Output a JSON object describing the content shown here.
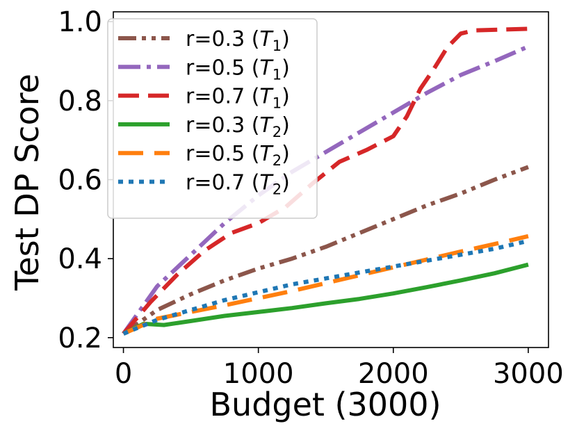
{
  "chart_data": {
    "type": "line",
    "xlabel": "Budget (3000)",
    "ylabel": "Test DP Score",
    "xlim": [
      -75,
      3150
    ],
    "ylim": [
      0.175,
      1.025
    ],
    "xticks": [
      0,
      1000,
      2000,
      3000
    ],
    "xtick_labels": [
      "0",
      "1000",
      "2000",
      "3000"
    ],
    "yticks": [
      0.2,
      0.4,
      0.6,
      0.8,
      1.0
    ],
    "ytick_labels": [
      "0.2",
      "0.4",
      "0.6",
      "0.8",
      "1.0"
    ],
    "grid": false,
    "legend_position": "upper-left",
    "series": [
      {
        "name": "r=0.3 (T1)",
        "label_main": "r=0.3 (",
        "label_var": "T",
        "label_sub": "1",
        "label_close": ")",
        "color": "#8c564b",
        "style": "dashdotdot",
        "x": [
          0,
          250,
          500,
          750,
          1000,
          1250,
          1500,
          1750,
          2000,
          2250,
          2500,
          2750,
          3000
        ],
        "y": [
          0.21,
          0.27,
          0.31,
          0.345,
          0.375,
          0.4,
          0.43,
          0.465,
          0.5,
          0.535,
          0.565,
          0.6,
          0.632
        ]
      },
      {
        "name": "r=0.5 (T1)",
        "label_main": "r=0.5 (",
        "label_var": "T",
        "label_sub": "1",
        "label_close": ")",
        "color": "#9467bd",
        "style": "dashdot",
        "x": [
          0,
          250,
          500,
          750,
          1000,
          1250,
          1500,
          1750,
          2000,
          2250,
          2500,
          2750,
          3000
        ],
        "y": [
          0.21,
          0.33,
          0.41,
          0.49,
          0.56,
          0.62,
          0.67,
          0.72,
          0.77,
          0.82,
          0.865,
          0.9,
          0.937
        ]
      },
      {
        "name": "r=0.7 (T1)",
        "label_main": "r=0.7 (",
        "label_var": "T",
        "label_sub": "1",
        "label_close": ")",
        "color": "#d62728",
        "style": "dashed",
        "x": [
          0,
          200,
          400,
          600,
          800,
          1000,
          1200,
          1400,
          1600,
          1800,
          2000,
          2100,
          2200,
          2300,
          2400,
          2500,
          2600,
          2800,
          3000
        ],
        "y": [
          0.21,
          0.29,
          0.36,
          0.42,
          0.465,
          0.49,
          0.53,
          0.59,
          0.645,
          0.675,
          0.71,
          0.76,
          0.83,
          0.88,
          0.935,
          0.97,
          0.978,
          0.98,
          0.982
        ]
      },
      {
        "name": "r=0.3 (T2)",
        "label_main": "r=0.3 (",
        "label_var": "T",
        "label_sub": "2",
        "label_close": ")",
        "color": "#2ca02c",
        "style": "solid",
        "x": [
          0,
          150,
          300,
          500,
          750,
          1000,
          1250,
          1500,
          1750,
          2000,
          2250,
          2500,
          2750,
          3000
        ],
        "y": [
          0.21,
          0.235,
          0.232,
          0.242,
          0.255,
          0.265,
          0.275,
          0.287,
          0.298,
          0.312,
          0.328,
          0.345,
          0.363,
          0.385
        ]
      },
      {
        "name": "r=0.5 (T2)",
        "label_main": "r=0.5 (",
        "label_var": "T",
        "label_sub": "2",
        "label_close": ")",
        "color": "#ff7f0e",
        "style": "longdash",
        "x": [
          0,
          250,
          500,
          750,
          1000,
          1250,
          1500,
          1750,
          2000,
          2250,
          2500,
          2750,
          3000
        ],
        "y": [
          0.21,
          0.248,
          0.265,
          0.282,
          0.3,
          0.318,
          0.338,
          0.358,
          0.378,
          0.398,
          0.418,
          0.437,
          0.457
        ]
      },
      {
        "name": "r=0.7 (T2)",
        "label_main": "r=0.7 (",
        "label_var": "T",
        "label_sub": "2",
        "label_close": ")",
        "color": "#1f77b4",
        "style": "dotted",
        "x": [
          0,
          250,
          500,
          750,
          1000,
          1250,
          1500,
          1750,
          2000,
          2250,
          2500,
          2750,
          3000
        ],
        "y": [
          0.21,
          0.245,
          0.27,
          0.295,
          0.315,
          0.335,
          0.35,
          0.365,
          0.38,
          0.395,
          0.41,
          0.425,
          0.445
        ]
      }
    ]
  }
}
